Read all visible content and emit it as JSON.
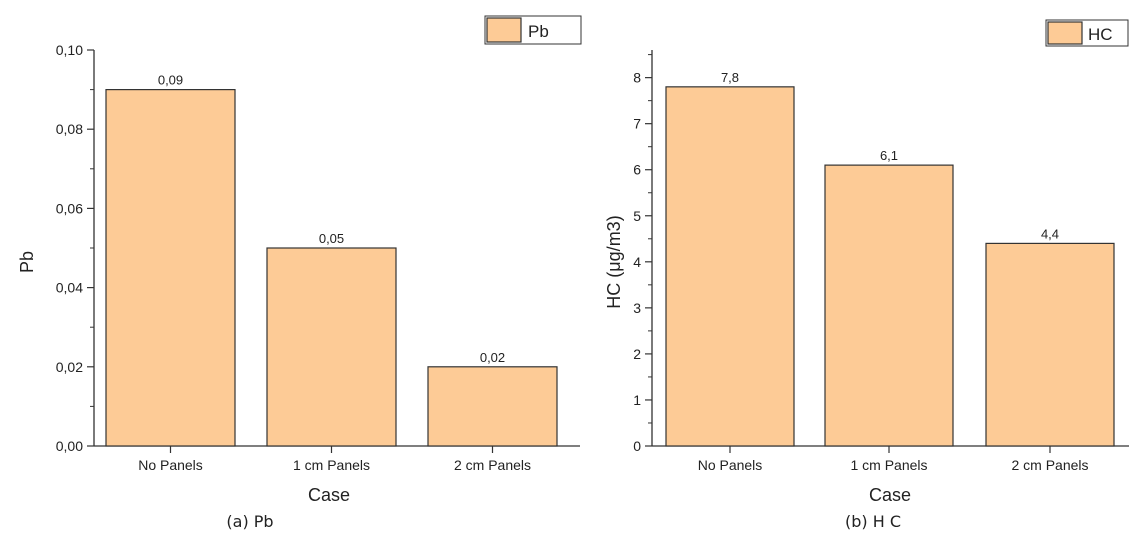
{
  "colors": {
    "bar_fill": "#FDCB96",
    "bar_stroke": "#333333",
    "axis": "#333333"
  },
  "chart_data": [
    {
      "type": "bar",
      "categories": [
        "No Panels",
        "1 cm Panels",
        "2 cm Panels"
      ],
      "series": [
        {
          "name": "Pb",
          "values": [
            0.09,
            0.05,
            0.02
          ]
        }
      ],
      "data_labels": [
        "0,09",
        "0,05",
        "0,02"
      ],
      "xlabel": "Case",
      "ylabel": "Pb",
      "ylim": [
        0,
        0.1
      ],
      "yticks": [
        "0,00",
        "0,02",
        "0,04",
        "0,06",
        "0,08",
        "0,10"
      ],
      "legend_position": "top-right",
      "grid": false,
      "caption": "(a) Pb"
    },
    {
      "type": "bar",
      "categories": [
        "No Panels",
        "1 cm Panels",
        "2 cm Panels"
      ],
      "series": [
        {
          "name": "HC",
          "values": [
            7.8,
            6.1,
            4.4
          ]
        }
      ],
      "data_labels": [
        "7,8",
        "6,1",
        "4,4"
      ],
      "xlabel": "Case",
      "ylabel": "HC (μg/m3)",
      "ylim": [
        0,
        8.6
      ],
      "yticks": [
        "0",
        "1",
        "2",
        "3",
        "4",
        "5",
        "6",
        "7",
        "8"
      ],
      "legend_position": "top-right",
      "grid": false,
      "caption": "(b) H C"
    }
  ]
}
